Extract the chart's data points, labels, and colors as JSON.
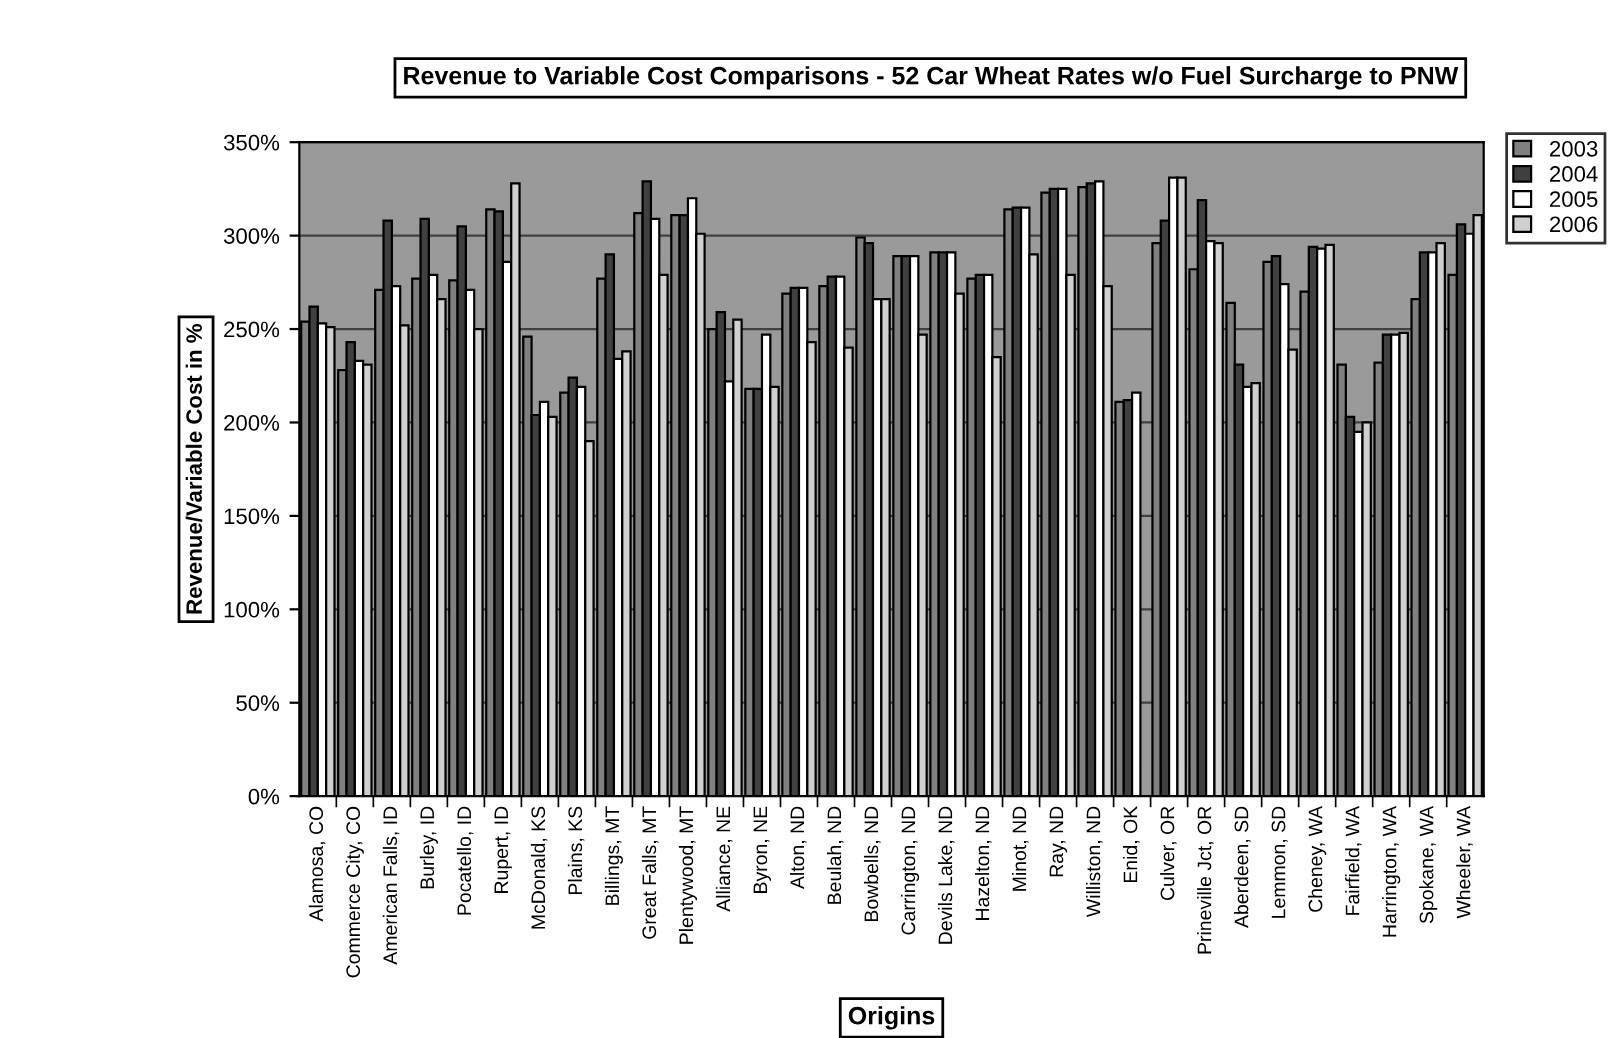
{
  "chart_data": {
    "type": "bar",
    "title": "Revenue to Variable Cost Comparisons - 52 Car Wheat Rates w/o Fuel Surcharge to PNW",
    "xlabel": "Origins",
    "ylabel": "Revenue/Variable Cost in %",
    "categories": [
      "Alamosa, CO",
      "Commerce City, CO",
      "American Falls, ID",
      "Burley, ID",
      "Pocatello, ID",
      "Rupert, ID",
      "McDonald, KS",
      "Plains, KS",
      "Billings, MT",
      "Great Falls, MT",
      "Plentywood, MT",
      "Alliance, NE",
      "Byron, NE",
      "Alton, ND",
      "Beulah, ND",
      "Bowbells, ND",
      "Carrington, ND",
      "Devils Lake, ND",
      "Hazelton, ND",
      "Minot, ND",
      "Ray, ND",
      "Williston, ND",
      "Enid, OK",
      "Culver, OR",
      "Prineville Jct, OR",
      "Aberdeen, SD",
      "Lemmon, SD",
      "Cheney, WA",
      "Fairfield, WA",
      "Harrington, WA",
      "Spokane, WA",
      "Wheeler, WA"
    ],
    "series": [
      {
        "name": "2003",
        "color": "#808080",
        "values": [
          254,
          228,
          271,
          277,
          276,
          314,
          246,
          216,
          277,
          312,
          311,
          250,
          218,
          269,
          273,
          299,
          289,
          291,
          277,
          314,
          323,
          326,
          211,
          296,
          282,
          264,
          286,
          270,
          231,
          232,
          266,
          279
        ]
      },
      {
        "name": "2004",
        "color": "#404040",
        "values": [
          262,
          243,
          308,
          309,
          305,
          313,
          204,
          224,
          290,
          329,
          311,
          259,
          218,
          272,
          278,
          296,
          289,
          291,
          279,
          315,
          325,
          328,
          212,
          308,
          319,
          231,
          289,
          294,
          203,
          247,
          291,
          306
        ]
      },
      {
        "name": "2005",
        "color": "#ffffff",
        "values": [
          253,
          233,
          273,
          279,
          271,
          286,
          211,
          219,
          234,
          309,
          320,
          222,
          247,
          272,
          278,
          266,
          289,
          291,
          279,
          315,
          325,
          329,
          216,
          331,
          297,
          219,
          274,
          293,
          195,
          247,
          291,
          301
        ]
      },
      {
        "name": "2006",
        "color": "#d0d0d0",
        "values": [
          251,
          231,
          252,
          266,
          250,
          328,
          203,
          190,
          238,
          279,
          301,
          255,
          219,
          243,
          240,
          266,
          247,
          269,
          235,
          290,
          279,
          273,
          null,
          331,
          296,
          221,
          239,
          295,
          200,
          248,
          296,
          311
        ]
      }
    ],
    "ylim": [
      0,
      350
    ],
    "yticks": [
      {
        "value": 0,
        "label": "0%"
      },
      {
        "value": 50,
        "label": "50%"
      },
      {
        "value": 100,
        "label": "100%"
      },
      {
        "value": 150,
        "label": "150%"
      },
      {
        "value": 200,
        "label": "200%"
      },
      {
        "value": 250,
        "label": "250%"
      },
      {
        "value": 300,
        "label": "300%"
      },
      {
        "value": 350,
        "label": "350%"
      }
    ],
    "grid": "y",
    "legend": "top right"
  }
}
